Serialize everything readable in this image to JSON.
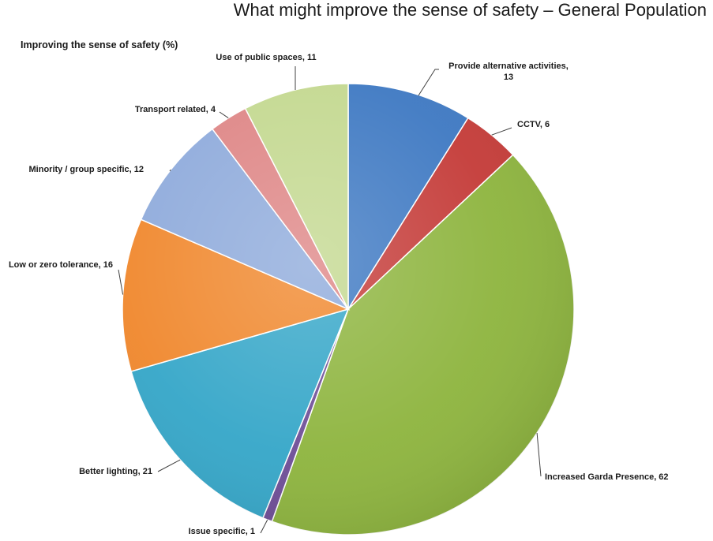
{
  "title": "What might improve the sense of safety – General Population",
  "chart_data": {
    "type": "pie",
    "title": "What might improve the sense of safety – General Population",
    "subtitle": "Improving the sense of safety (%)",
    "slices": [
      {
        "name": "Provide alternative activities",
        "value": 13,
        "label_lines": [
          "Provide alternative activities,",
          "13"
        ],
        "color": "#3d78c2"
      },
      {
        "name": "CCTV",
        "value": 6,
        "label_lines": [
          "CCTV, 6"
        ],
        "color": "#c43a37"
      },
      {
        "name": "Increased Garda Presence",
        "value": 62,
        "label_lines": [
          "Increased Garda Presence, 62"
        ],
        "color": "#8db43d"
      },
      {
        "name": "Issue specific",
        "value": 1,
        "label_lines": [
          "Issue specific, 1"
        ],
        "color": "#6d4c96"
      },
      {
        "name": "Better lighting",
        "value": 21,
        "label_lines": [
          "Better lighting, 21"
        ],
        "color": "#34a6c8"
      },
      {
        "name": "Low or zero tolerance",
        "value": 16,
        "label_lines": [
          "Low or zero tolerance, 16"
        ],
        "color": "#f0872c"
      },
      {
        "name": "Minority / group specific",
        "value": 12,
        "label_lines": [
          "Minority / group specific, 12"
        ],
        "color": "#8eaadb"
      },
      {
        "name": "Transport related",
        "value": 4,
        "label_lines": [
          "Transport related, 4"
        ],
        "color": "#de8585"
      },
      {
        "name": "Use of public spaces",
        "value": 11,
        "label_lines": [
          "Use of public spaces, 11"
        ],
        "color": "#c3d88f"
      }
    ],
    "start": "top",
    "direction": "clockwise",
    "legend": "none"
  }
}
